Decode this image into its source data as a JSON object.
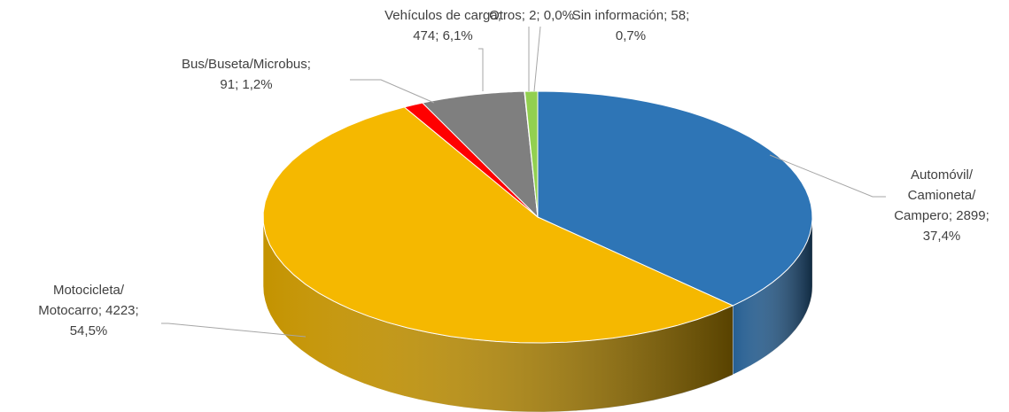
{
  "chart_data": {
    "type": "pie3d",
    "labels": [
      [
        "Automóvil/",
        "Camioneta/",
        "Campero; 2899;",
        "37,4%"
      ],
      [
        "Motocicleta/",
        "Motocarro; 4223;",
        "54,5%"
      ],
      [
        "Bus/Buseta/Microbus;",
        "91; 1,2%"
      ],
      [
        "Vehículos de carga;",
        "474; 6,1%"
      ],
      [
        "Otros; 2; 0,0%"
      ],
      [
        "Sin información; 58;",
        "0,7%"
      ]
    ],
    "values": [
      2899,
      4223,
      91,
      474,
      2,
      58
    ],
    "percents": [
      37.4,
      54.5,
      1.2,
      6.1,
      0.0,
      0.7
    ],
    "colors": [
      "#2e75b6",
      "#f5b800",
      "#ff0000",
      "#7f7f7f",
      "#a5a5a5",
      "#92d050"
    ]
  }
}
